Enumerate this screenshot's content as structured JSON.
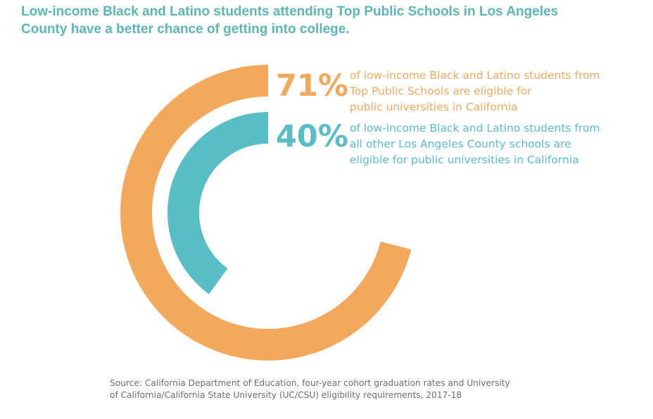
{
  "title": "Low-income Black and Latino students attending Top Public Schools in Los Angeles County have a better chance of getting into college.",
  "chart_data": {
    "type": "radial-bar",
    "unit": "%",
    "max": 100,
    "series": [
      {
        "label": "71%",
        "value": 71,
        "color": "#f2a95b",
        "text_lines": [
          "of low-income Black and Latino students from",
          "Top Public Schools are eligible for",
          "public universities in California"
        ]
      },
      {
        "label": "40%",
        "value": 40,
        "color": "#58bec6",
        "text_lines": [
          "of low-income Black and Latino students from",
          "all other Los Angeles County schools are",
          "eligible for public universities in California"
        ]
      }
    ]
  },
  "source": {
    "line1": "Source: California Department of Education, four-year cohort graduation rates and University",
    "line2": "of California/California State University (UC/CSU) eligibility requirements, 2017-18"
  }
}
